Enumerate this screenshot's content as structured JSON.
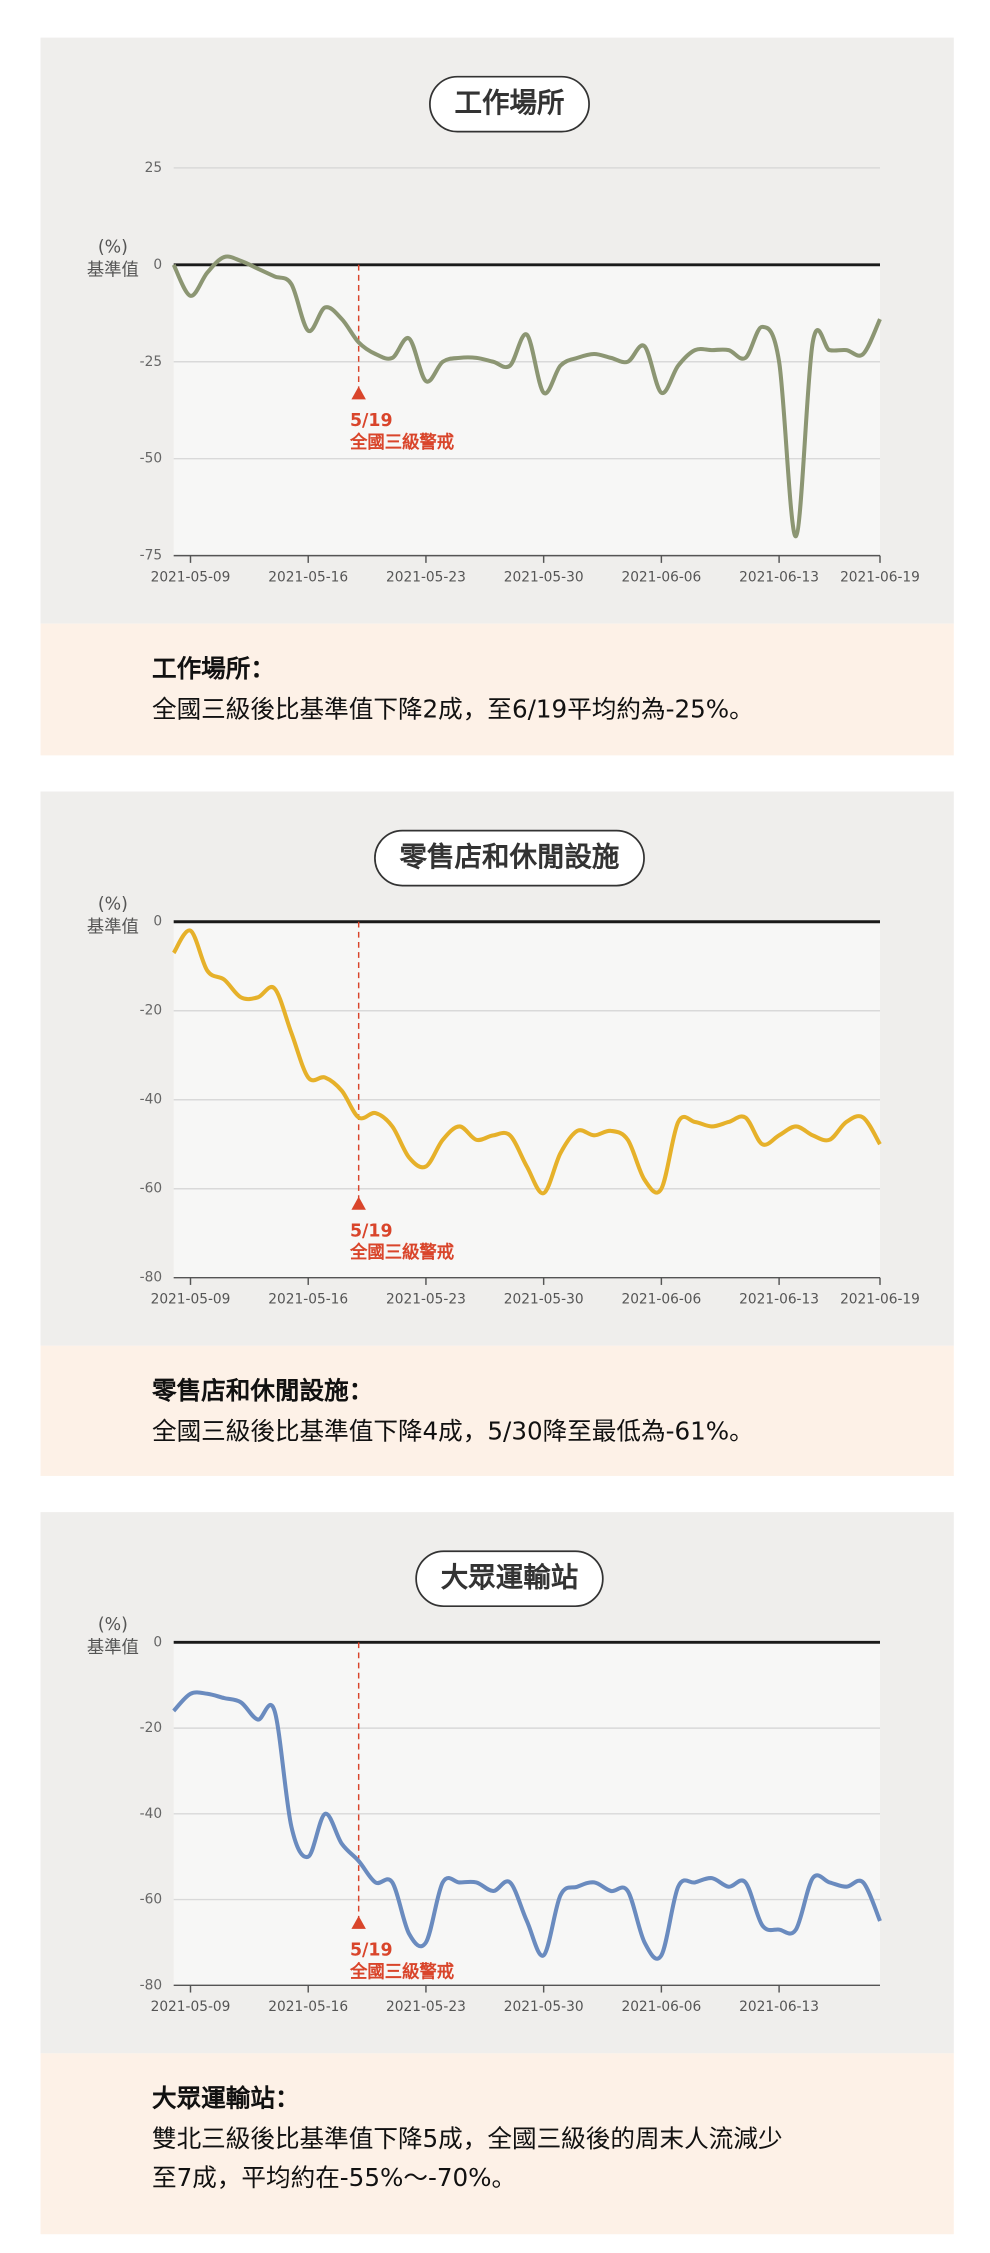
{
  "chart_data": [
    {
      "type": "line",
      "title": "工作場所",
      "y_label": "(%)",
      "baseline_label": "基準值",
      "x": [
        "2021-05-08",
        "2021-05-09",
        "2021-05-10",
        "2021-05-11",
        "2021-05-12",
        "2021-05-13",
        "2021-05-14",
        "2021-05-15",
        "2021-05-16",
        "2021-05-17",
        "2021-05-18",
        "2021-05-19",
        "2021-05-20",
        "2021-05-21",
        "2021-05-22",
        "2021-05-23",
        "2021-05-24",
        "2021-05-25",
        "2021-05-26",
        "2021-05-27",
        "2021-05-28",
        "2021-05-29",
        "2021-05-30",
        "2021-05-31",
        "2021-06-01",
        "2021-06-02",
        "2021-06-03",
        "2021-06-04",
        "2021-06-05",
        "2021-06-06",
        "2021-06-07",
        "2021-06-08",
        "2021-06-09",
        "2021-06-10",
        "2021-06-11",
        "2021-06-12",
        "2021-06-13",
        "2021-06-14",
        "2021-06-15",
        "2021-06-16",
        "2021-06-17",
        "2021-06-18",
        "2021-06-19"
      ],
      "values": [
        0,
        -8,
        -2,
        2,
        1,
        -1,
        -3,
        -5,
        -17,
        -11,
        -14,
        -20,
        -23,
        -24,
        -19,
        -30,
        -25,
        -24,
        -24,
        -25,
        -26,
        -18,
        -33,
        -26,
        -24,
        -23,
        -24,
        -25,
        -21,
        -33,
        -26,
        -22,
        -22,
        -22,
        -24,
        -16,
        -25,
        -70,
        -20,
        -22,
        -22,
        -23,
        -14
      ],
      "color": "#8c9673",
      "xlim": [
        "2021-05-08",
        "2021-06-19"
      ],
      "xticks": [
        "2021-05-09",
        "2021-05-16",
        "2021-05-23",
        "2021-05-30",
        "2021-06-06",
        "2021-06-13",
        "2021-06-19"
      ],
      "ylim": [
        -75,
        25
      ],
      "yticks": [
        25,
        0,
        -25,
        -50,
        -75
      ],
      "annotations": [
        {
          "x": "2021-05-19",
          "label": "5/19",
          "text": "全國三級警戒"
        }
      ]
    },
    {
      "type": "line",
      "title": "零售店和休閒設施",
      "y_label": "(%)",
      "baseline_label": "基準值",
      "x": [
        "2021-05-08",
        "2021-05-09",
        "2021-05-10",
        "2021-05-11",
        "2021-05-12",
        "2021-05-13",
        "2021-05-14",
        "2021-05-15",
        "2021-05-16",
        "2021-05-17",
        "2021-05-18",
        "2021-05-19",
        "2021-05-20",
        "2021-05-21",
        "2021-05-22",
        "2021-05-23",
        "2021-05-24",
        "2021-05-25",
        "2021-05-26",
        "2021-05-27",
        "2021-05-28",
        "2021-05-29",
        "2021-05-30",
        "2021-05-31",
        "2021-06-01",
        "2021-06-02",
        "2021-06-03",
        "2021-06-04",
        "2021-06-05",
        "2021-06-06",
        "2021-06-07",
        "2021-06-08",
        "2021-06-09",
        "2021-06-10",
        "2021-06-11",
        "2021-06-12",
        "2021-06-13",
        "2021-06-14",
        "2021-06-15",
        "2021-06-16",
        "2021-06-17",
        "2021-06-18",
        "2021-06-19"
      ],
      "values": [
        -7,
        -2,
        -11,
        -13,
        -17,
        -17,
        -15,
        -25,
        -35,
        -35,
        -38,
        -44,
        -43,
        -46,
        -53,
        -55,
        -49,
        -46,
        -49,
        -48,
        -48,
        -55,
        -61,
        -52,
        -47,
        -48,
        -47,
        -49,
        -58,
        -60,
        -45,
        -45,
        -46,
        -45,
        -44,
        -50,
        -48,
        -46,
        -48,
        -49,
        -45,
        -44,
        -50
      ],
      "color": "#e6b12a",
      "xlim": [
        "2021-05-08",
        "2021-06-19"
      ],
      "xticks": [
        "2021-05-09",
        "2021-05-16",
        "2021-05-23",
        "2021-05-30",
        "2021-06-06",
        "2021-06-13",
        "2021-06-19"
      ],
      "ylim": [
        -80,
        0
      ],
      "yticks": [
        0,
        -20,
        -40,
        -60,
        -80
      ],
      "annotations": [
        {
          "x": "2021-05-19",
          "label": "5/19",
          "text": "全國三級警戒"
        }
      ]
    },
    {
      "type": "line",
      "title": "大眾運輸站",
      "y_label": "(%)",
      "baseline_label": "基準值",
      "x": [
        "2021-05-08",
        "2021-05-09",
        "2021-05-10",
        "2021-05-11",
        "2021-05-12",
        "2021-05-13",
        "2021-05-14",
        "2021-05-15",
        "2021-05-16",
        "2021-05-17",
        "2021-05-18",
        "2021-05-19",
        "2021-05-20",
        "2021-05-21",
        "2021-05-22",
        "2021-05-23",
        "2021-05-24",
        "2021-05-25",
        "2021-05-26",
        "2021-05-27",
        "2021-05-28",
        "2021-05-29",
        "2021-05-30",
        "2021-05-31",
        "2021-06-01",
        "2021-06-02",
        "2021-06-03",
        "2021-06-04",
        "2021-06-05",
        "2021-06-06",
        "2021-06-07",
        "2021-06-08",
        "2021-06-09",
        "2021-06-10",
        "2021-06-11",
        "2021-06-12",
        "2021-06-13",
        "2021-06-14",
        "2021-06-15",
        "2021-06-16",
        "2021-06-17",
        "2021-06-18",
        "2021-06-19"
      ],
      "values": [
        -16,
        -12,
        -12,
        -13,
        -14,
        -18,
        -16,
        -43,
        -50,
        -40,
        -47,
        -51,
        -56,
        -56,
        -68,
        -70,
        -56,
        -56,
        -56,
        -58,
        -56,
        -65,
        -73,
        -59,
        -57,
        -56,
        -58,
        -58,
        -70,
        -73,
        -57,
        -56,
        -55,
        -57,
        -56,
        -66,
        -67,
        -67,
        -55,
        -56,
        -57,
        -56,
        -65
      ],
      "color": "#6a8bbf",
      "xlim": [
        "2021-05-08",
        "2021-06-19"
      ],
      "xticks": [
        "2021-05-09",
        "2021-05-16",
        "2021-05-23",
        "2021-05-30",
        "2021-06-06",
        "2021-06-13"
      ],
      "ylim": [
        -80,
        0
      ],
      "yticks": [
        0,
        -20,
        -40,
        -60,
        -80
      ],
      "annotations": [
        {
          "x": "2021-05-19",
          "label": "5/19",
          "text": "全國三級警戒"
        }
      ]
    }
  ],
  "notes": [
    {
      "title": "工作場所：",
      "lines": [
        "全國三級後比基準值下降2成，至6/19平均約為-25%。"
      ]
    },
    {
      "title": "零售店和休閒設施：",
      "lines": [
        "全國三級後比基準值下降4成，5/30降至最低為-61%。"
      ]
    },
    {
      "title": "大眾運輸站：",
      "lines": [
        "雙北三級後比基準值下降5成，全國三級後的周末人流減少",
        "至7成，平均約在-55%～-70%。"
      ]
    }
  ]
}
